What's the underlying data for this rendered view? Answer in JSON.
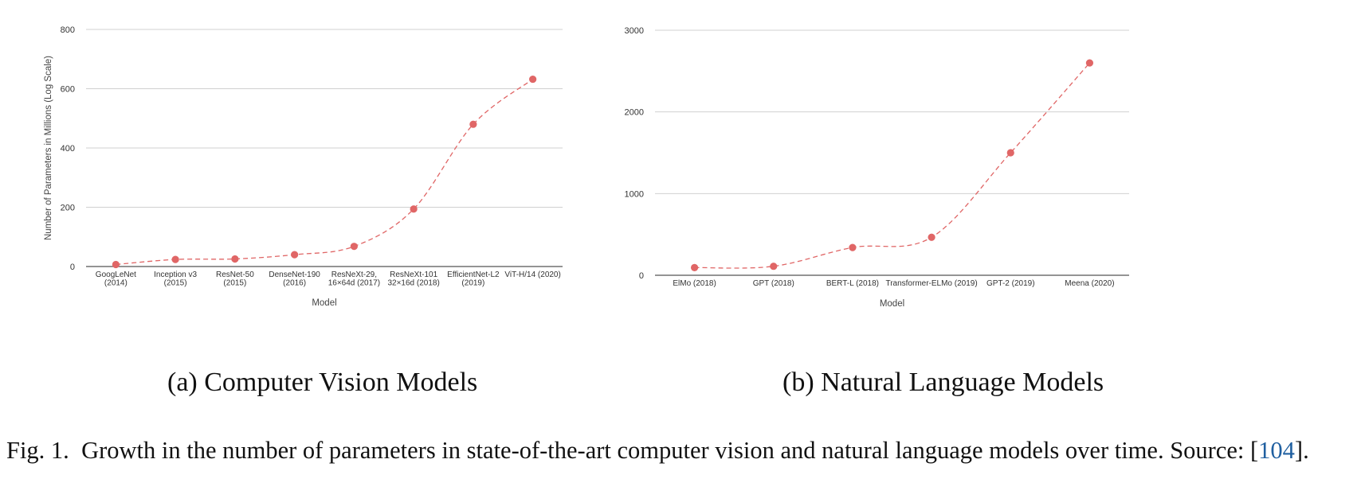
{
  "chart_data": [
    {
      "type": "line",
      "caption": "(a) Computer Vision Models",
      "xlabel": "Model",
      "ylabel": "Number of Parameters in Millions (Log Scale)",
      "ylim": [
        0,
        800
      ],
      "yticks": [
        0,
        200,
        400,
        600,
        800
      ],
      "grid": true,
      "color": "#e06666",
      "line_style": "dashed",
      "categories": [
        [
          "GoogLeNet",
          "(2014)"
        ],
        [
          "Inception v3",
          "(2015)"
        ],
        [
          "ResNet-50",
          "(2015)"
        ],
        [
          "DenseNet-190",
          "(2016)"
        ],
        [
          "ResNeXt-29,",
          "16×64d (2017)"
        ],
        [
          "ResNeXt-101",
          "32×16d (2018)"
        ],
        [
          "EfficientNet-L2",
          "(2019)"
        ],
        [
          "ViT-H/14 (2020)"
        ]
      ],
      "values": [
        6.8,
        23.8,
        25.6,
        40,
        68,
        194,
        480,
        632
      ]
    },
    {
      "type": "line",
      "caption": "(b) Natural Language Models",
      "xlabel": "Model",
      "ylabel": "Number of Parameters in Millions (Log Scale)",
      "ylim": [
        0,
        3000
      ],
      "yticks": [
        0,
        1000,
        2000,
        3000
      ],
      "grid": true,
      "color": "#e06666",
      "line_style": "dashed",
      "categories": [
        [
          "ElMo (2018)"
        ],
        [
          "GPT (2018)"
        ],
        [
          "BERT-L (2018)"
        ],
        [
          "Transformer-ELMo (2019)"
        ],
        [
          "GPT-2 (2019)"
        ],
        [
          "Meena (2020)"
        ]
      ],
      "values": [
        94,
        110,
        340,
        465,
        1500,
        2600
      ]
    }
  ],
  "figure_caption": {
    "label": "Fig. 1.",
    "text": "Growth in the number of parameters in state-of-the-art computer vision and natural language models over time. Source: ",
    "ref_open": "[",
    "ref": "104",
    "ref_close": "]."
  }
}
